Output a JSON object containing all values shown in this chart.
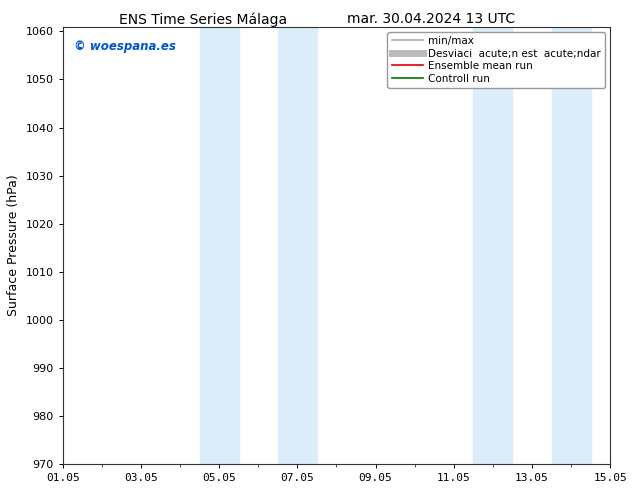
{
  "title_left": "ENS Time Series Málaga",
  "title_right": "mar. 30.04.2024 13 UTC",
  "ylabel": "Surface Pressure (hPa)",
  "ylim": [
    970,
    1061
  ],
  "yticks": [
    970,
    980,
    990,
    1000,
    1010,
    1020,
    1030,
    1040,
    1050,
    1060
  ],
  "xlim": [
    0,
    14
  ],
  "xtick_labels": [
    "01.05",
    "03.05",
    "05.05",
    "07.05",
    "09.05",
    "11.05",
    "13.05",
    "15.05"
  ],
  "xtick_positions": [
    0,
    2,
    4,
    6,
    8,
    10,
    12,
    14
  ],
  "blue_bands": [
    {
      "start": 3.5,
      "end": 4.5
    },
    {
      "start": 5.5,
      "end": 6.5
    },
    {
      "start": 10.5,
      "end": 11.5
    },
    {
      "start": 12.5,
      "end": 13.5
    }
  ],
  "band_color": "#daedf8",
  "background_color": "#ffffff",
  "watermark": "© woespana.es",
  "watermark_color": "#0055cc",
  "legend_entries": [
    {
      "label": "min/max",
      "color": "#aaaaaa",
      "lw": 1.2
    },
    {
      "label": "Desviaci  acute;n est  acute;ndar",
      "color": "#bbbbbb",
      "lw": 5
    },
    {
      "label": "Ensemble mean run",
      "color": "#dd0000",
      "lw": 1.2
    },
    {
      "label": "Controll run",
      "color": "#007700",
      "lw": 1.2
    }
  ],
  "title_fontsize": 10,
  "tick_fontsize": 8,
  "ylabel_fontsize": 9,
  "legend_fontsize": 7.5
}
